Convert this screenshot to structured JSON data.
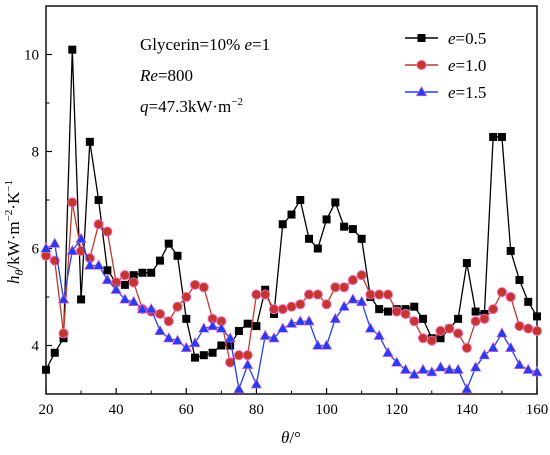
{
  "chart_data": {
    "type": "line",
    "xlabel_symbol": "θ",
    "xlabel_unit": "/°",
    "ylabel_symbol": "h",
    "ylabel_sub": "θ",
    "ylabel_unit": "/kW·m",
    "ylabel_unit_exp1": "−2",
    "ylabel_unit_mid": "·K",
    "ylabel_unit_exp2": "−1",
    "xlim": [
      20,
      160
    ],
    "ylim": [
      3,
      11
    ],
    "xticks": [
      20,
      40,
      60,
      80,
      100,
      120,
      140,
      160
    ],
    "yticks": [
      4,
      6,
      8,
      10
    ],
    "annotations": {
      "line1": "Glycerin=10%",
      "line1_e": "e",
      "line1_e_val": "=1",
      "line2_re": "Re",
      "line2_val": "=800",
      "line3_q": "q",
      "line3_val": "=47.3kW·m",
      "line3_exp": "−2"
    },
    "legend_placement": "top-right",
    "series": [
      {
        "name_var": "e",
        "name_val": "=0.5",
        "color": "#000000",
        "marker": "square",
        "x": [
          20,
          22.5,
          25,
          27.5,
          30,
          32.5,
          35,
          37.5,
          40,
          42.5,
          45,
          47.5,
          50,
          52.5,
          55,
          57.5,
          60,
          62.5,
          65,
          67.5,
          70,
          72.5,
          75,
          77.5,
          80,
          82.5,
          85,
          87.5,
          90,
          92.5,
          95,
          97.5,
          100,
          102.5,
          105,
          107.5,
          110,
          112.5,
          115,
          117.5,
          120,
          122.5,
          125,
          127.5,
          130,
          132.5,
          135,
          137.5,
          140,
          142.5,
          145,
          147.5,
          150,
          152.5,
          155,
          157.5,
          160
        ],
        "y": [
          3.5,
          3.85,
          4.15,
          10.1,
          4.95,
          8.2,
          7.0,
          5.55,
          5.3,
          5.25,
          5.45,
          5.5,
          5.5,
          5.75,
          6.1,
          5.85,
          4.55,
          3.75,
          3.8,
          3.85,
          4.0,
          4.0,
          4.3,
          4.45,
          4.4,
          5.15,
          4.65,
          6.5,
          6.7,
          7.0,
          6.2,
          6.0,
          6.6,
          6.95,
          6.45,
          6.4,
          6.2,
          5.0,
          4.75,
          4.7,
          4.75,
          4.75,
          4.8,
          4.55,
          4.15,
          4.15,
          4.35,
          4.55,
          5.7,
          4.7,
          4.65,
          8.3,
          8.3,
          5.95,
          5.35,
          4.9,
          4.6
        ]
      },
      {
        "name_var": "e",
        "name_val": "=1.0",
        "color": "#c0392b",
        "marker": "circle",
        "x": [
          20,
          22.5,
          25,
          27.5,
          30,
          32.5,
          35,
          37.5,
          40,
          42.5,
          45,
          47.5,
          50,
          52.5,
          55,
          57.5,
          60,
          62.5,
          65,
          67.5,
          70,
          72.5,
          75,
          77.5,
          80,
          82.5,
          85,
          87.5,
          90,
          92.5,
          95,
          97.5,
          100,
          102.5,
          105,
          107.5,
          110,
          112.5,
          115,
          117.5,
          120,
          122.5,
          125,
          127.5,
          130,
          132.5,
          135,
          137.5,
          140,
          142.5,
          145,
          147.5,
          150,
          152.5,
          155,
          157.5,
          160
        ],
        "y": [
          5.85,
          5.75,
          4.25,
          6.95,
          5.95,
          5.8,
          6.5,
          6.35,
          5.3,
          5.45,
          5.3,
          4.75,
          4.7,
          4.65,
          4.5,
          4.8,
          5.0,
          5.25,
          5.2,
          4.55,
          4.5,
          3.65,
          3.8,
          3.8,
          5.05,
          5.05,
          4.75,
          4.75,
          4.8,
          4.85,
          5.05,
          5.05,
          4.85,
          5.2,
          5.2,
          5.35,
          5.45,
          5.05,
          5.05,
          5.05,
          4.7,
          4.65,
          4.5,
          4.15,
          4.1,
          4.3,
          4.35,
          4.25,
          3.95,
          4.5,
          4.55,
          4.75,
          5.1,
          5.0,
          4.4,
          4.35,
          4.3
        ]
      },
      {
        "name_var": "e",
        "name_val": "=1.5",
        "color": "#1f3ff0",
        "marker": "triangle",
        "x": [
          20,
          22.5,
          25,
          27.5,
          30,
          32.5,
          35,
          37.5,
          40,
          42.5,
          45,
          47.5,
          50,
          52.5,
          55,
          57.5,
          60,
          62.5,
          65,
          67.5,
          70,
          72.5,
          75,
          77.5,
          80,
          82.5,
          85,
          87.5,
          90,
          92.5,
          95,
          97.5,
          100,
          102.5,
          105,
          107.5,
          110,
          112.5,
          115,
          117.5,
          120,
          122.5,
          125,
          127.5,
          130,
          132.5,
          135,
          137.5,
          140,
          142.5,
          145,
          147.5,
          150,
          152.5,
          155,
          157.5,
          160
        ],
        "y": [
          6.0,
          6.1,
          4.95,
          5.95,
          6.2,
          5.65,
          5.65,
          5.35,
          5.15,
          4.95,
          4.9,
          4.75,
          4.75,
          4.3,
          4.15,
          4.1,
          3.95,
          4.05,
          4.35,
          4.4,
          4.35,
          4.15,
          3.1,
          3.6,
          3.2,
          4.2,
          4.15,
          4.35,
          4.45,
          4.5,
          4.5,
          4.0,
          4.0,
          4.55,
          4.8,
          4.95,
          4.9,
          4.35,
          4.2,
          3.85,
          3.65,
          3.5,
          3.4,
          3.5,
          3.45,
          3.55,
          3.5,
          3.5,
          3.1,
          3.55,
          3.8,
          3.95,
          4.25,
          3.95,
          3.6,
          3.5,
          3.45
        ]
      }
    ]
  }
}
